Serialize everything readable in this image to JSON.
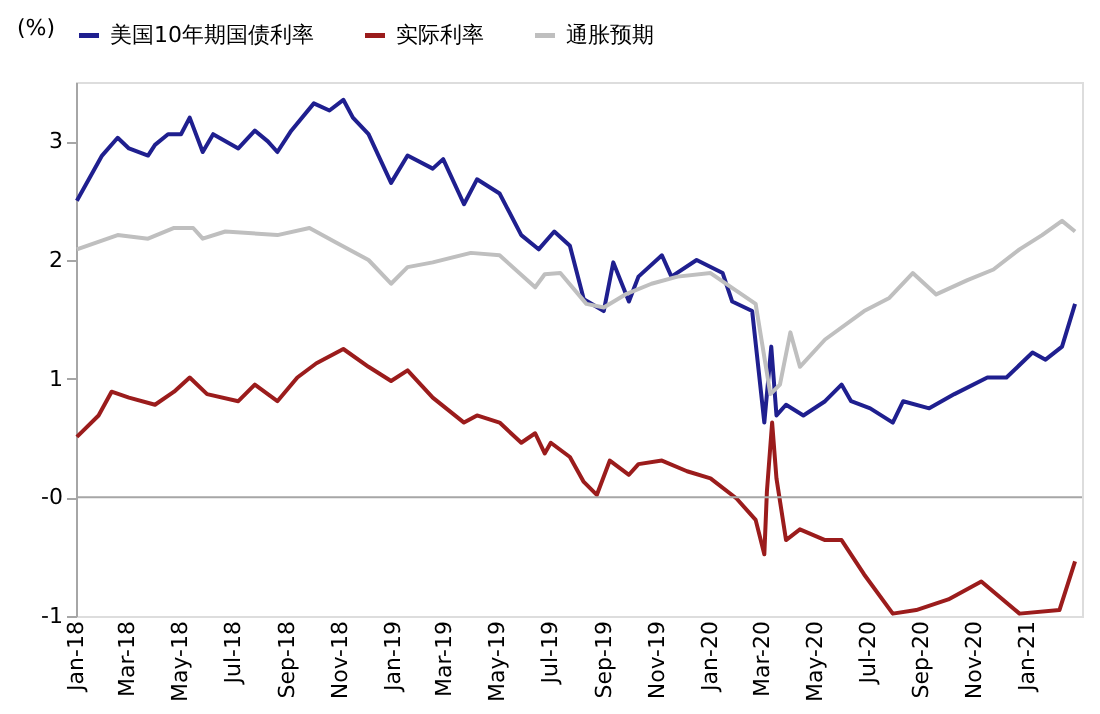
{
  "chart_data": {
    "type": "line",
    "ylabel": "(%)",
    "legend": "top",
    "grid": false,
    "line_style": "solid",
    "marker": "none",
    "xlim": [
      "2018-01-01",
      "2021-03-05"
    ],
    "xticks": [
      {
        "value": "2018-01-01",
        "label": "Jan-18"
      },
      {
        "value": "2018-03-01",
        "label": "Mar-18"
      },
      {
        "value": "2018-05-01",
        "label": "May-18"
      },
      {
        "value": "2018-07-01",
        "label": "Jul-18"
      },
      {
        "value": "2018-09-01",
        "label": "Sep-18"
      },
      {
        "value": "2018-11-01",
        "label": "Nov-18"
      },
      {
        "value": "2019-01-01",
        "label": "Jan-19"
      },
      {
        "value": "2019-03-01",
        "label": "Mar-19"
      },
      {
        "value": "2019-05-01",
        "label": "May-19"
      },
      {
        "value": "2019-07-01",
        "label": "Jul-19"
      },
      {
        "value": "2019-09-01",
        "label": "Sep-19"
      },
      {
        "value": "2019-11-01",
        "label": "Nov-19"
      },
      {
        "value": "2020-01-01",
        "label": "Jan-20"
      },
      {
        "value": "2020-03-01",
        "label": "Mar-20"
      },
      {
        "value": "2020-05-01",
        "label": "May-20"
      },
      {
        "value": "2020-07-01",
        "label": "Jul-20"
      },
      {
        "value": "2020-09-01",
        "label": "Sep-20"
      },
      {
        "value": "2020-11-01",
        "label": "Nov-20"
      },
      {
        "value": "2021-01-01",
        "label": "Jan-21"
      }
    ],
    "ylim": [
      -1,
      3.5
    ],
    "yticks": [
      -1,
      {
        "value": 0,
        "label": "-0"
      },
      1,
      2,
      3
    ],
    "ref_lines": [
      {
        "axis": "y",
        "value": 0,
        "color": "#a6a6a6"
      }
    ],
    "series": [
      {
        "name": "美国10年期国债利率",
        "color": "#1f1f8f",
        "x": [
          "2018-01-02",
          "2018-01-31",
          "2018-02-18",
          "2018-03-03",
          "2018-03-25",
          "2018-04-02",
          "2018-04-17",
          "2018-05-02",
          "2018-05-12",
          "2018-05-27",
          "2018-06-08",
          "2018-07-07",
          "2018-07-26",
          "2018-08-10",
          "2018-08-21",
          "2018-09-06",
          "2018-10-02",
          "2018-10-20",
          "2018-11-05",
          "2018-11-16",
          "2018-12-04",
          "2018-12-30",
          "2019-01-18",
          "2019-02-16",
          "2019-02-28",
          "2019-03-24",
          "2019-04-08",
          "2019-05-04",
          "2019-05-29",
          "2019-06-18",
          "2019-07-06",
          "2019-07-24",
          "2019-08-09",
          "2019-09-01",
          "2019-09-12",
          "2019-09-30",
          "2019-10-11",
          "2019-11-07",
          "2019-11-18",
          "2019-12-17",
          "2020-01-16",
          "2020-01-27",
          "2020-02-19",
          "2020-03-04",
          "2020-03-12",
          "2020-03-18",
          "2020-03-29",
          "2020-04-18",
          "2020-05-13",
          "2020-06-01",
          "2020-06-12",
          "2020-07-04",
          "2020-07-30",
          "2020-08-11",
          "2020-09-10",
          "2020-10-09",
          "2020-11-16",
          "2020-12-08",
          "2021-01-07",
          "2021-01-22",
          "2021-02-10",
          "2021-02-25"
        ],
        "values": [
          2.5,
          2.88,
          3.03,
          2.94,
          2.88,
          2.97,
          3.06,
          3.06,
          3.2,
          2.91,
          3.06,
          2.94,
          3.09,
          3.0,
          2.91,
          3.09,
          3.32,
          3.26,
          3.35,
          3.2,
          3.06,
          2.65,
          2.88,
          2.77,
          2.85,
          2.47,
          2.68,
          2.56,
          2.21,
          2.09,
          2.24,
          2.12,
          1.67,
          1.57,
          1.98,
          1.65,
          1.86,
          2.04,
          1.86,
          2.0,
          1.89,
          1.65,
          1.57,
          0.63,
          1.27,
          0.69,
          0.78,
          0.69,
          0.81,
          0.95,
          0.81,
          0.75,
          0.63,
          0.81,
          0.75,
          0.87,
          1.01,
          1.01,
          1.22,
          1.16,
          1.27,
          1.63
        ]
      },
      {
        "name": "实际利率",
        "color": "#9b1c1c",
        "x": [
          "2018-01-02",
          "2018-01-27",
          "2018-02-11",
          "2018-03-03",
          "2018-04-02",
          "2018-04-24",
          "2018-05-12",
          "2018-06-01",
          "2018-07-07",
          "2018-07-26",
          "2018-08-21",
          "2018-09-13",
          "2018-10-05",
          "2018-11-05",
          "2018-12-04",
          "2018-12-30",
          "2019-01-18",
          "2019-02-16",
          "2019-03-24",
          "2019-04-08",
          "2019-05-04",
          "2019-05-29",
          "2019-06-14",
          "2019-06-25",
          "2019-07-02",
          "2019-07-24",
          "2019-08-09",
          "2019-08-24",
          "2019-09-08",
          "2019-09-30",
          "2019-10-11",
          "2019-11-07",
          "2019-12-06",
          "2020-01-02",
          "2020-02-01",
          "2020-02-23",
          "2020-03-04",
          "2020-03-07",
          "2020-03-13",
          "2020-03-18",
          "2020-03-29",
          "2020-04-14",
          "2020-05-13",
          "2020-06-01",
          "2020-06-27",
          "2020-07-30",
          "2020-08-26",
          "2020-10-02",
          "2020-11-09",
          "2020-12-23",
          "2021-02-07",
          "2021-02-25"
        ],
        "values": [
          0.51,
          0.69,
          0.89,
          0.84,
          0.78,
          0.89,
          1.01,
          0.87,
          0.81,
          0.95,
          0.81,
          1.01,
          1.13,
          1.25,
          1.1,
          0.98,
          1.07,
          0.84,
          0.63,
          0.69,
          0.63,
          0.46,
          0.54,
          0.37,
          0.46,
          0.34,
          0.13,
          0.02,
          0.31,
          0.19,
          0.28,
          0.31,
          0.22,
          0.16,
          -0.01,
          -0.19,
          -0.48,
          0.05,
          0.63,
          0.16,
          -0.36,
          -0.27,
          -0.36,
          -0.36,
          -0.65,
          -0.98,
          -0.95,
          -0.86,
          -0.71,
          -0.98,
          -0.95,
          -0.54
        ]
      },
      {
        "name": "通胀预期",
        "color": "#bfbfbf",
        "x": [
          "2018-01-02",
          "2018-02-18",
          "2018-03-25",
          "2018-04-24",
          "2018-05-16",
          "2018-05-27",
          "2018-06-22",
          "2018-08-21",
          "2018-09-27",
          "2018-10-27",
          "2018-12-04",
          "2018-12-30",
          "2019-01-18",
          "2019-02-16",
          "2019-04-01",
          "2019-05-04",
          "2019-06-14",
          "2019-06-25",
          "2019-07-13",
          "2019-08-12",
          "2019-09-01",
          "2019-09-26",
          "2019-10-26",
          "2019-11-25",
          "2020-01-02",
          "2020-02-01",
          "2020-02-23",
          "2020-03-11",
          "2020-03-22",
          "2020-04-03",
          "2020-04-14",
          "2020-05-13",
          "2020-06-27",
          "2020-07-26",
          "2020-08-22",
          "2020-09-18",
          "2020-10-24",
          "2020-11-23",
          "2020-12-23",
          "2021-01-18",
          "2021-02-10",
          "2021-02-25"
        ],
        "values": [
          2.09,
          2.21,
          2.18,
          2.27,
          2.27,
          2.18,
          2.24,
          2.21,
          2.27,
          2.15,
          2.0,
          1.8,
          1.94,
          1.98,
          2.06,
          2.04,
          1.77,
          1.88,
          1.89,
          1.63,
          1.6,
          1.71,
          1.8,
          1.86,
          1.89,
          1.74,
          1.63,
          0.87,
          0.95,
          1.39,
          1.1,
          1.33,
          1.57,
          1.68,
          1.89,
          1.71,
          1.83,
          1.92,
          2.09,
          2.21,
          2.33,
          2.24
        ]
      }
    ]
  }
}
